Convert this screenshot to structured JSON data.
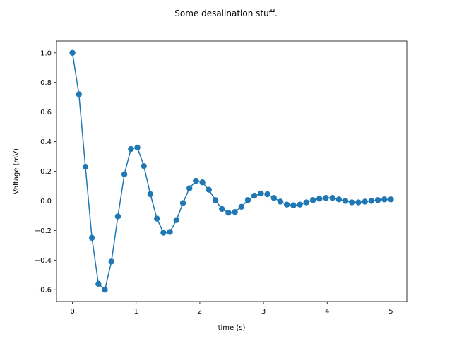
{
  "chart_data": {
    "type": "line",
    "title": "Some desalination stuff.",
    "xlabel": "time (s)",
    "ylabel": "Voltage (mV)",
    "xlim": [
      -0.25,
      5.25
    ],
    "ylim": [
      -0.68,
      1.08
    ],
    "xticks": [
      0,
      1,
      2,
      3,
      4,
      5
    ],
    "xtick_labels": [
      "0",
      "1",
      "2",
      "3",
      "4",
      "5"
    ],
    "yticks": [
      -0.6,
      -0.4,
      -0.2,
      0.0,
      0.2,
      0.4,
      0.6,
      0.8,
      1.0
    ],
    "ytick_labels": [
      "−0.6",
      "−0.4",
      "−0.2",
      "0.0",
      "0.2",
      "0.4",
      "0.6",
      "0.8",
      "1.0"
    ],
    "grid": false,
    "legend": "none",
    "marker": "circle",
    "series": [
      {
        "color": "#1f77b4",
        "x": [
          0.0,
          0.102,
          0.204,
          0.306,
          0.408,
          0.51,
          0.612,
          0.714,
          0.816,
          0.918,
          1.02,
          1.122,
          1.224,
          1.327,
          1.429,
          1.531,
          1.633,
          1.735,
          1.837,
          1.939,
          2.041,
          2.143,
          2.245,
          2.347,
          2.449,
          2.551,
          2.653,
          2.755,
          2.857,
          2.959,
          3.061,
          3.163,
          3.265,
          3.367,
          3.469,
          3.571,
          3.673,
          3.776,
          3.878,
          3.98,
          4.082,
          4.184,
          4.286,
          4.388,
          4.49,
          4.592,
          4.694,
          4.796,
          4.898,
          5.0
        ],
        "y": [
          1.0,
          0.72,
          0.23,
          -0.25,
          -0.56,
          -0.6,
          -0.41,
          -0.105,
          0.18,
          0.35,
          0.36,
          0.235,
          0.045,
          -0.12,
          -0.215,
          -0.21,
          -0.13,
          -0.015,
          0.085,
          0.135,
          0.125,
          0.075,
          0.005,
          -0.055,
          -0.08,
          -0.075,
          -0.04,
          0.005,
          0.035,
          0.05,
          0.045,
          0.02,
          -0.005,
          -0.025,
          -0.03,
          -0.025,
          -0.01,
          0.005,
          0.015,
          0.02,
          0.02,
          0.01,
          0.0,
          -0.01,
          -0.01,
          -0.005,
          0.0,
          0.005,
          0.01,
          0.01
        ]
      }
    ]
  }
}
